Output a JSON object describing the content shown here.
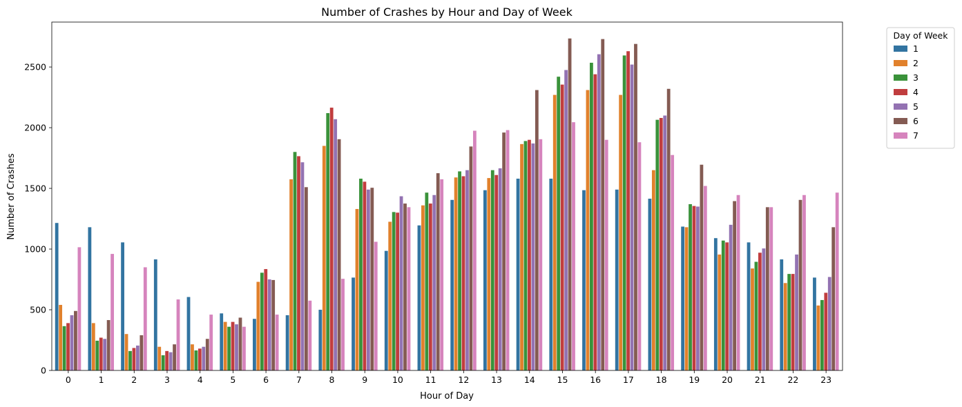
{
  "chart_data": {
    "type": "bar",
    "title": "Number of Crashes by Hour and Day of Week",
    "xlabel": "Hour of Day",
    "ylabel": "Number of Crashes",
    "ylim": [
      0,
      2870
    ],
    "yticks": [
      0,
      500,
      1000,
      1500,
      2000,
      2500
    ],
    "grid": false,
    "legend": {
      "title": "Day of Week",
      "placement": "outside-top-right"
    },
    "categories": [
      "0",
      "1",
      "2",
      "3",
      "4",
      "5",
      "6",
      "7",
      "8",
      "9",
      "10",
      "11",
      "12",
      "13",
      "14",
      "15",
      "16",
      "17",
      "18",
      "19",
      "20",
      "21",
      "22",
      "23"
    ],
    "series": [
      {
        "name": "1",
        "color": "#3274a1",
        "values": [
          1215,
          1180,
          1055,
          915,
          605,
          470,
          425,
          455,
          500,
          765,
          985,
          1195,
          1405,
          1485,
          1580,
          1580,
          1485,
          1490,
          1415,
          1185,
          1090,
          1055,
          915,
          765
        ]
      },
      {
        "name": "2",
        "color": "#e1812c",
        "values": [
          540,
          390,
          300,
          195,
          215,
          400,
          730,
          1575,
          1850,
          1330,
          1225,
          1360,
          1590,
          1585,
          1865,
          2270,
          2310,
          2270,
          1650,
          1180,
          955,
          840,
          720,
          535
        ]
      },
      {
        "name": "3",
        "color": "#3a923a",
        "values": [
          365,
          245,
          160,
          125,
          165,
          360,
          805,
          1800,
          2120,
          1580,
          1305,
          1465,
          1640,
          1650,
          1890,
          2420,
          2535,
          2595,
          2065,
          1370,
          1070,
          895,
          795,
          580
        ]
      },
      {
        "name": "4",
        "color": "#c03d3e",
        "values": [
          390,
          270,
          185,
          160,
          180,
          400,
          835,
          1765,
          2165,
          1555,
          1300,
          1375,
          1600,
          1610,
          1900,
          2355,
          2440,
          2630,
          2080,
          1355,
          1055,
          970,
          795,
          640
        ]
      },
      {
        "name": "5",
        "color": "#9372b2",
        "values": [
          455,
          260,
          205,
          150,
          195,
          380,
          750,
          1715,
          2070,
          1490,
          1435,
          1445,
          1650,
          1665,
          1870,
          2475,
          2605,
          2520,
          2100,
          1350,
          1200,
          1005,
          955,
          770
        ]
      },
      {
        "name": "6",
        "color": "#845b53",
        "values": [
          490,
          415,
          290,
          215,
          260,
          435,
          745,
          1510,
          1905,
          1505,
          1375,
          1625,
          1845,
          1960,
          2310,
          2735,
          2730,
          2690,
          2320,
          1695,
          1395,
          1345,
          1405,
          1180
        ]
      },
      {
        "name": "7",
        "color": "#d684bd",
        "values": [
          1015,
          960,
          850,
          585,
          460,
          360,
          460,
          575,
          755,
          1060,
          1345,
          1575,
          1975,
          1980,
          1905,
          2045,
          1900,
          1880,
          1775,
          1520,
          1445,
          1345,
          1445,
          1465
        ]
      }
    ]
  }
}
